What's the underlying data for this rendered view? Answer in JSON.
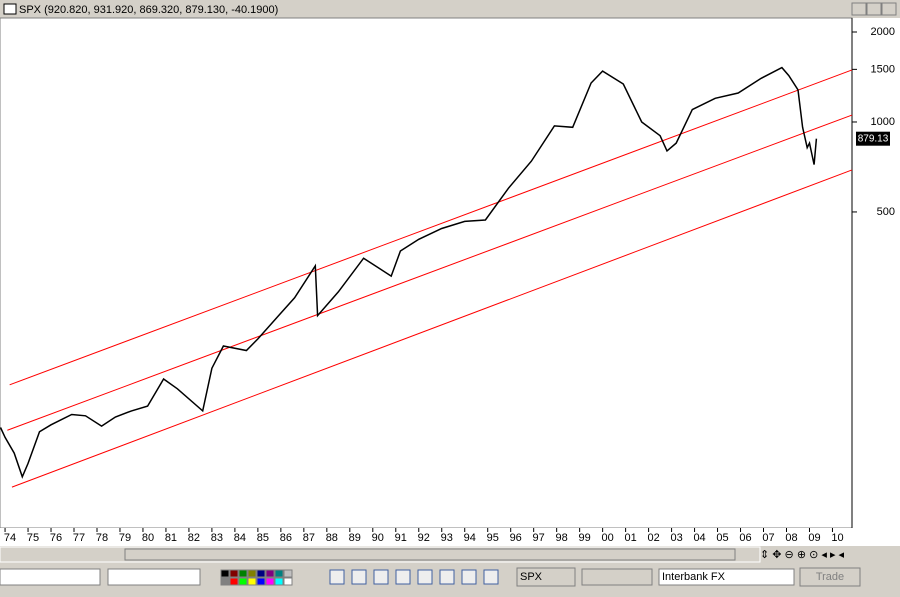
{
  "window": {
    "title": "SPX (920.820, 931.920, 869.320, 879.130, -40.1900)"
  },
  "chart_data": {
    "type": "line",
    "log_scale": true,
    "color": "#000000",
    "x": [
      1973.8,
      1974.0,
      1974.4,
      1974.75,
      1975.0,
      1975.5,
      1976.0,
      1976.9,
      1977.5,
      1978.2,
      1978.8,
      1979.5,
      1980.2,
      1980.9,
      1981.5,
      1982.6,
      1983.0,
      1983.5,
      1984.5,
      1985.0,
      1985.9,
      1986.6,
      1987.5,
      1987.6,
      1988.5,
      1989.6,
      1990.8,
      1991.2,
      1992.0,
      1993.0,
      1994.0,
      1994.9,
      1995.9,
      1996.9,
      1997.9,
      1998.7,
      1999.5,
      2000.0,
      2000.9,
      2001.7,
      2002.5,
      2002.8,
      2003.2,
      2003.9,
      2004.9,
      2005.9,
      2006.9,
      2007.8,
      2008.1,
      2008.5,
      2008.7,
      2008.9,
      2009.0,
      2009.2,
      2009.3
    ],
    "values": [
      95,
      88,
      78,
      65,
      72,
      92,
      97,
      105,
      104,
      96,
      103,
      108,
      112,
      138,
      128,
      108,
      150,
      178,
      172,
      188,
      225,
      258,
      330,
      225,
      270,
      350,
      305,
      370,
      405,
      440,
      465,
      470,
      600,
      740,
      970,
      960,
      1350,
      1480,
      1340,
      1000,
      900,
      800,
      850,
      1100,
      1200,
      1250,
      1400,
      1520,
      1430,
      1280,
      960,
      820,
      850,
      720,
      879.13
    ],
    "last_value": 879.13,
    "xlim": [
      1973.78,
      2010.85
    ],
    "ylim": [
      43.8,
      2228
    ],
    "yticks": [
      500,
      1000,
      1500,
      2000
    ],
    "xticks": [
      {
        "value": 1974,
        "label": "74"
      },
      {
        "value": 1975,
        "label": "75"
      },
      {
        "value": 1976,
        "label": "76"
      },
      {
        "value": 1977,
        "label": "77"
      },
      {
        "value": 1978,
        "label": "78"
      },
      {
        "value": 1979,
        "label": "79"
      },
      {
        "value": 1980,
        "label": "80"
      },
      {
        "value": 1981,
        "label": "81"
      },
      {
        "value": 1982,
        "label": "82"
      },
      {
        "value": 1983,
        "label": "83"
      },
      {
        "value": 1984,
        "label": "84"
      },
      {
        "value": 1985,
        "label": "85"
      },
      {
        "value": 1986,
        "label": "86"
      },
      {
        "value": 1987,
        "label": "87"
      },
      {
        "value": 1988,
        "label": "88"
      },
      {
        "value": 1989,
        "label": "89"
      },
      {
        "value": 1990,
        "label": "90"
      },
      {
        "value": 1991,
        "label": "91"
      },
      {
        "value": 1992,
        "label": "92"
      },
      {
        "value": 1993,
        "label": "93"
      },
      {
        "value": 1994,
        "label": "94"
      },
      {
        "value": 1995,
        "label": "95"
      },
      {
        "value": 1996,
        "label": "96"
      },
      {
        "value": 1997,
        "label": "97"
      },
      {
        "value": 1998,
        "label": "98"
      },
      {
        "value": 1999,
        "label": "99"
      },
      {
        "value": 2000,
        "label": "00"
      },
      {
        "value": 2001,
        "label": "01"
      },
      {
        "value": 2002,
        "label": "02"
      },
      {
        "value": 2003,
        "label": "03"
      },
      {
        "value": 2004,
        "label": "04"
      },
      {
        "value": 2005,
        "label": "05"
      },
      {
        "value": 2006,
        "label": "06"
      },
      {
        "value": 2007,
        "label": "07"
      },
      {
        "value": 2008,
        "label": "08"
      },
      {
        "value": 2009,
        "label": "09"
      },
      {
        "value": 2010,
        "label": "10"
      }
    ],
    "trendlines": [
      {
        "x": [
          1974.2,
          2010.85
        ],
        "values": [
          132,
          1493
        ],
        "color": "#ff0000"
      },
      {
        "x": [
          1974.1,
          2010.85
        ],
        "values": [
          93,
          1055
        ],
        "color": "#ff0000"
      },
      {
        "x": [
          1974.3,
          2010.85
        ],
        "values": [
          60,
          691
        ],
        "color": "#ff0000"
      }
    ]
  },
  "toolbar": {
    "symbol": "SPX",
    "broker": "Interbank FX",
    "trade_button": "Trade"
  }
}
